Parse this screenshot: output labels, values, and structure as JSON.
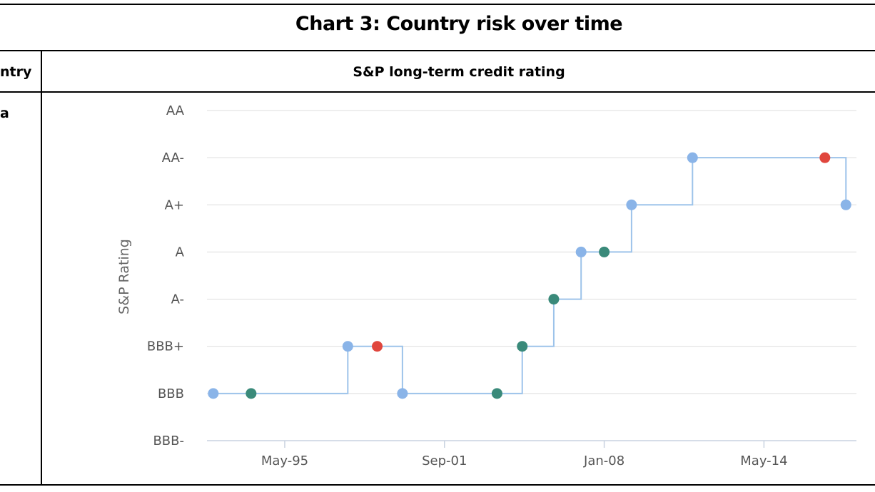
{
  "table": {
    "title": "Chart 3: Country risk over time",
    "col_country_header": "ntry",
    "col_rating_header": "S&P long-term credit rating",
    "row_country": "a"
  },
  "colors": {
    "line": "#9dc3ea",
    "grid": "#dddddd",
    "marker_blue": "#8ab4e8",
    "marker_teal": "#3a8a7a",
    "marker_red": "#e0463d"
  },
  "chart_data": {
    "type": "line",
    "step": true,
    "title": "",
    "xlabel": "",
    "ylabel": "S&P Rating",
    "yticks": [
      "BBB-",
      "BBB",
      "BBB+",
      "A-",
      "A",
      "A+",
      "AA-",
      "AA"
    ],
    "xticks": [
      "May-95",
      "Sep-01",
      "Jan-08",
      "May-14"
    ],
    "xlim": [
      "1992-04",
      "2018-01"
    ],
    "grid": true,
    "legend": "none",
    "points": [
      {
        "date": "1992-07",
        "rating": "BBB",
        "marker": "blue"
      },
      {
        "date": "1994-01",
        "rating": "BBB",
        "marker": "teal"
      },
      {
        "date": "1997-11",
        "rating": "BBB+",
        "marker": "blue"
      },
      {
        "date": "1999-01",
        "rating": "BBB+",
        "marker": "red"
      },
      {
        "date": "2000-01",
        "rating": "BBB",
        "marker": "blue"
      },
      {
        "date": "2003-10",
        "rating": "BBB",
        "marker": "teal"
      },
      {
        "date": "2004-10",
        "rating": "BBB+",
        "marker": "teal"
      },
      {
        "date": "2006-01",
        "rating": "A-",
        "marker": "teal"
      },
      {
        "date": "2007-02",
        "rating": "A",
        "marker": "blue"
      },
      {
        "date": "2008-01",
        "rating": "A",
        "marker": "teal"
      },
      {
        "date": "2009-02",
        "rating": "A+",
        "marker": "blue"
      },
      {
        "date": "2011-07",
        "rating": "AA-",
        "marker": "blue"
      },
      {
        "date": "2016-10",
        "rating": "AA-",
        "marker": "red"
      },
      {
        "date": "2017-08",
        "rating": "A+",
        "marker": "blue"
      }
    ]
  }
}
